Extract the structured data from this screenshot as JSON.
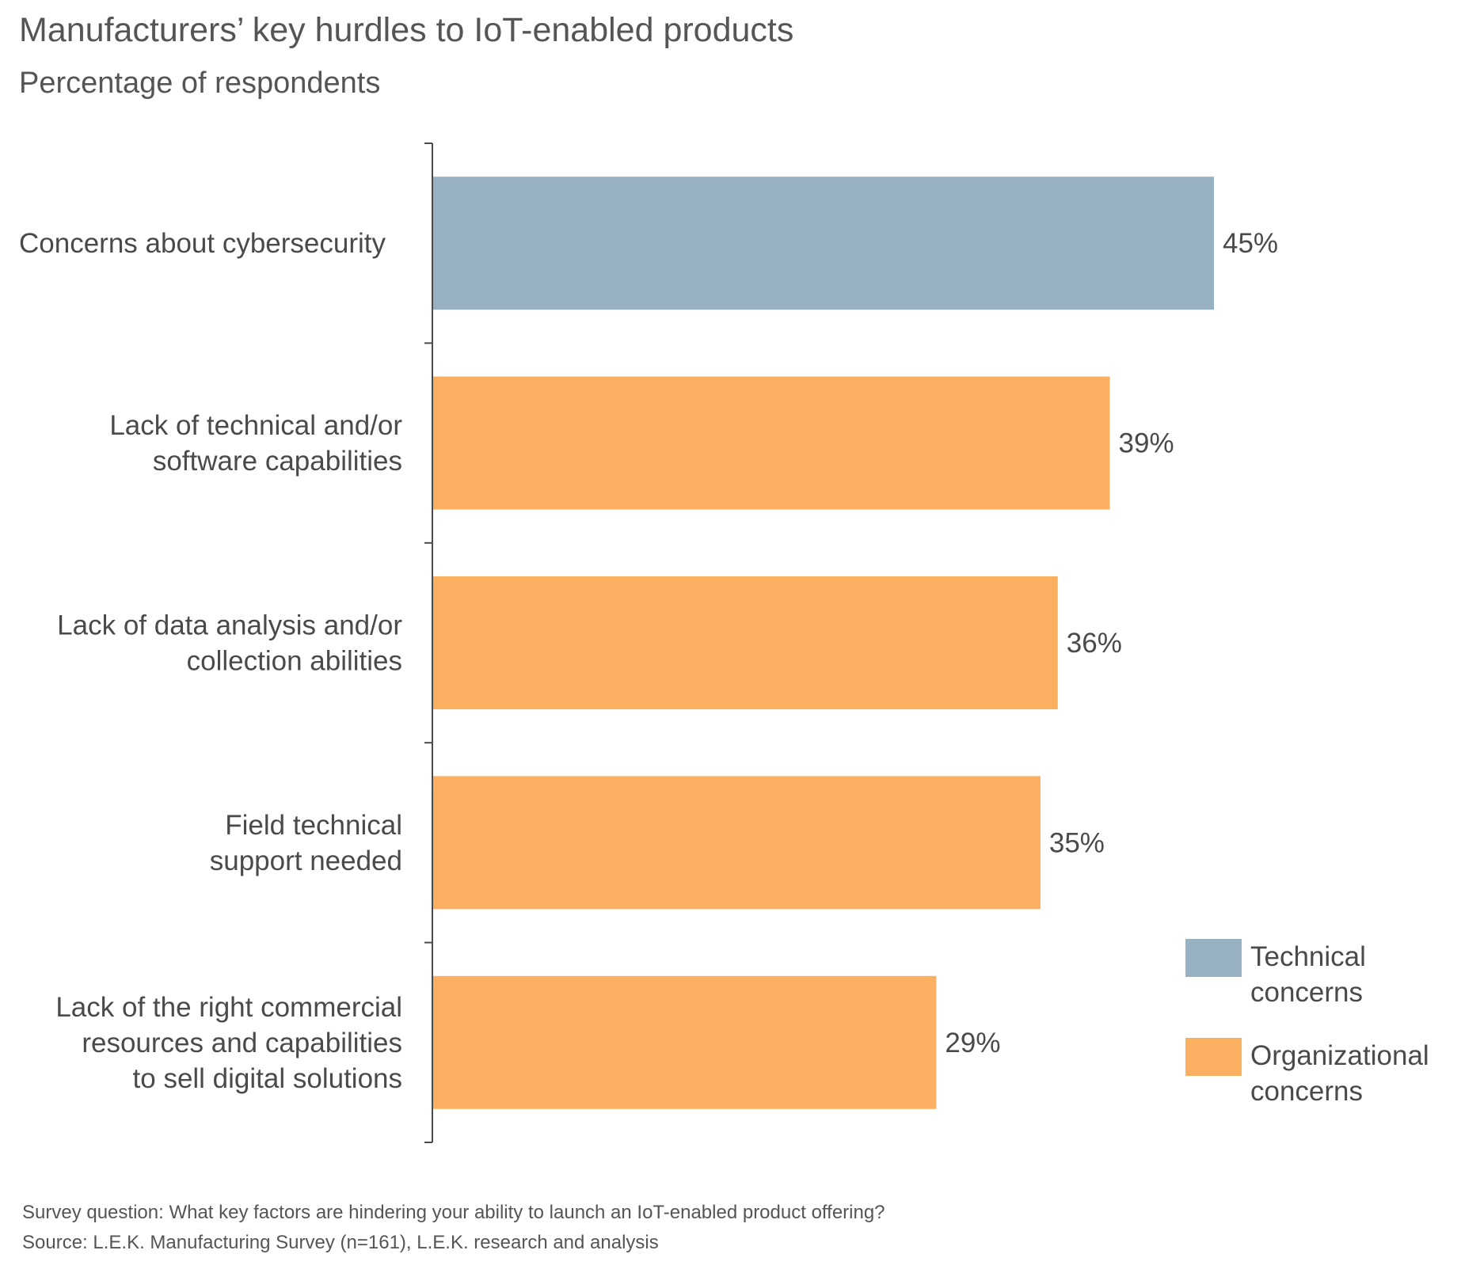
{
  "chart_data": {
    "type": "bar",
    "orientation": "horizontal",
    "title": "Manufacturers’ key hurdles to IoT-enabled products",
    "subtitle": "Percentage of respondents",
    "categories": [
      [
        "Concerns about cybersecurity"
      ],
      [
        "Lack of technical and/or",
        "software capabilities"
      ],
      [
        "Lack of data analysis and/or",
        "collection abilities"
      ],
      [
        "Field technical",
        "support needed"
      ],
      [
        "Lack of the right commercial",
        "resources and capabilities",
        "to sell digital solutions"
      ]
    ],
    "values": [
      45,
      39,
      36,
      35,
      29
    ],
    "value_labels": [
      "45%",
      "39%",
      "36%",
      "35%",
      "29%"
    ],
    "groups": [
      "technical",
      "organizational",
      "organizational",
      "organizational",
      "organizational"
    ],
    "xlim": [
      0,
      45
    ],
    "grid": false,
    "legend": {
      "placement": "bottom-right",
      "items": [
        {
          "key": "technical",
          "label": [
            "Technical",
            "concerns"
          ],
          "color": "#97b1c3"
        },
        {
          "key": "organizational",
          "label": [
            "Organizational",
            "concerns"
          ],
          "color": "#fbb061"
        }
      ]
    },
    "colors": {
      "technical": "#97b1c3",
      "organizational": "#fbb061",
      "axis": "#4a4a4a"
    }
  },
  "footnotes": {
    "survey": "Survey question: What key factors are hindering your ability to launch an IoT-enabled product offering?",
    "source": "Source: L.E.K. Manufacturing Survey (n=161), L.E.K. research and analysis"
  }
}
